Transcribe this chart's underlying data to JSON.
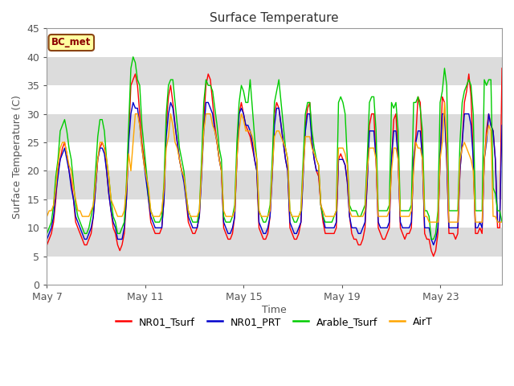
{
  "title": "Surface Temperature",
  "xlabel": "Time",
  "ylabel": "Surface Temperature (C)",
  "ylim": [
    0,
    45
  ],
  "yticks": [
    0,
    5,
    10,
    15,
    20,
    25,
    30,
    35,
    40,
    45
  ],
  "annotation": "BC_met",
  "annotation_bg": "#FFFFA0",
  "annotation_border": "#8B4513",
  "plot_bg": "#F0F0F0",
  "band_light": "#FFFFFF",
  "band_dark": "#DCDCDC",
  "legend_entries": [
    "NR01_Tsurf",
    "NR01_PRT",
    "Arable_Tsurf",
    "AirT"
  ],
  "line_colors": [
    "#FF0000",
    "#0000CC",
    "#00CC00",
    "#FFA500"
  ],
  "x_tick_labels": [
    "May 7",
    "May 11",
    "May 15",
    "May 19",
    "May 23"
  ],
  "x_tick_positions": [
    0,
    4,
    8,
    12,
    16
  ],
  "x_max": 18.5,
  "NR01_Tsurf": [
    7,
    8,
    9,
    11,
    15,
    20,
    22,
    24,
    25,
    23,
    20,
    18,
    15,
    11,
    10,
    9,
    8,
    7,
    7,
    8,
    9,
    12,
    17,
    22,
    24,
    25,
    24,
    20,
    16,
    13,
    10,
    9,
    7,
    6,
    7,
    9,
    15,
    26,
    35,
    36,
    37,
    35,
    30,
    25,
    22,
    19,
    15,
    11,
    10,
    9,
    9,
    9,
    10,
    15,
    28,
    33,
    35,
    32,
    28,
    25,
    22,
    20,
    19,
    15,
    11,
    10,
    9,
    9,
    10,
    12,
    20,
    29,
    35,
    37,
    36,
    32,
    28,
    25,
    22,
    20,
    10,
    9,
    8,
    8,
    9,
    12,
    22,
    30,
    32,
    30,
    28,
    27,
    26,
    24,
    22,
    20,
    10,
    9,
    8,
    8,
    9,
    12,
    20,
    30,
    32,
    31,
    28,
    25,
    22,
    20,
    10,
    9,
    8,
    8,
    9,
    11,
    20,
    28,
    31,
    32,
    25,
    22,
    20,
    19,
    14,
    11,
    9,
    9,
    9,
    9,
    9,
    10,
    22,
    23,
    22,
    21,
    18,
    12,
    9,
    8,
    8,
    7,
    7,
    8,
    10,
    18,
    28,
    30,
    30,
    22,
    10,
    9,
    8,
    8,
    9,
    10,
    22,
    29,
    30,
    22,
    10,
    9,
    8,
    9,
    9,
    10,
    22,
    26,
    33,
    32,
    22,
    9,
    8,
    8,
    6,
    5,
    6,
    9,
    22,
    33,
    32,
    22,
    9,
    9,
    9,
    8,
    9,
    20,
    25,
    32,
    34,
    37,
    33,
    22,
    9,
    9,
    10,
    9,
    22,
    27,
    30,
    28,
    27,
    22,
    10,
    10,
    38
  ],
  "NR01_PRT": [
    8,
    9,
    10,
    12,
    16,
    19,
    22,
    23,
    24,
    22,
    20,
    17,
    15,
    12,
    11,
    10,
    9,
    8,
    8,
    9,
    10,
    12,
    17,
    22,
    24,
    24,
    23,
    20,
    16,
    13,
    11,
    10,
    8,
    8,
    8,
    10,
    15,
    25,
    30,
    32,
    31,
    31,
    28,
    24,
    21,
    18,
    15,
    12,
    11,
    10,
    10,
    10,
    10,
    15,
    26,
    30,
    32,
    31,
    28,
    25,
    22,
    20,
    18,
    15,
    12,
    11,
    10,
    10,
    10,
    12,
    19,
    27,
    32,
    32,
    31,
    30,
    27,
    25,
    22,
    20,
    11,
    10,
    9,
    9,
    10,
    12,
    22,
    30,
    31,
    30,
    28,
    28,
    27,
    25,
    22,
    20,
    11,
    10,
    9,
    9,
    10,
    12,
    19,
    28,
    31,
    31,
    28,
    25,
    22,
    20,
    11,
    10,
    9,
    9,
    10,
    11,
    19,
    27,
    30,
    30,
    25,
    22,
    20,
    20,
    14,
    12,
    10,
    10,
    10,
    10,
    10,
    11,
    22,
    22,
    22,
    21,
    18,
    12,
    10,
    10,
    10,
    9,
    9,
    10,
    11,
    18,
    27,
    27,
    27,
    22,
    11,
    10,
    10,
    10,
    10,
    11,
    22,
    27,
    27,
    22,
    11,
    10,
    10,
    10,
    10,
    11,
    22,
    25,
    27,
    27,
    22,
    10,
    10,
    10,
    8,
    7,
    8,
    10,
    22,
    30,
    30,
    22,
    10,
    10,
    10,
    10,
    10,
    20,
    25,
    30,
    30,
    30,
    28,
    22,
    10,
    10,
    11,
    10,
    22,
    25,
    30,
    28,
    27,
    22,
    11,
    11,
    28
  ],
  "Arable_Tsurf": [
    9,
    10,
    11,
    14,
    19,
    22,
    27,
    28,
    29,
    27,
    24,
    22,
    18,
    14,
    12,
    11,
    10,
    9,
    9,
    10,
    12,
    14,
    20,
    26,
    29,
    29,
    27,
    22,
    19,
    15,
    12,
    11,
    9,
    9,
    10,
    11,
    18,
    28,
    38,
    40,
    39,
    36,
    35,
    28,
    24,
    20,
    16,
    13,
    12,
    11,
    11,
    11,
    12,
    18,
    30,
    35,
    36,
    36,
    32,
    28,
    24,
    22,
    20,
    16,
    13,
    12,
    11,
    11,
    11,
    13,
    22,
    32,
    36,
    35,
    35,
    34,
    31,
    28,
    24,
    22,
    12,
    11,
    11,
    11,
    12,
    14,
    25,
    32,
    35,
    34,
    32,
    32,
    36,
    31,
    26,
    22,
    13,
    12,
    11,
    11,
    12,
    14,
    22,
    32,
    34,
    36,
    32,
    28,
    24,
    22,
    13,
    12,
    11,
    11,
    12,
    13,
    22,
    30,
    32,
    32,
    27,
    24,
    22,
    21,
    14,
    12,
    11,
    11,
    11,
    11,
    12,
    13,
    32,
    33,
    32,
    30,
    22,
    14,
    13,
    13,
    13,
    12,
    12,
    13,
    14,
    22,
    32,
    33,
    33,
    27,
    13,
    13,
    13,
    13,
    13,
    14,
    32,
    31,
    32,
    27,
    13,
    13,
    13,
    13,
    13,
    14,
    32,
    32,
    33,
    31,
    27,
    13,
    13,
    12,
    8,
    8,
    9,
    13,
    32,
    34,
    38,
    35,
    13,
    13,
    13,
    13,
    13,
    25,
    32,
    34,
    35,
    36,
    35,
    30,
    13,
    13,
    13,
    13,
    36,
    35,
    36,
    36,
    17,
    16,
    13,
    13,
    11
  ],
  "AirT": [
    12,
    13,
    13,
    14,
    17,
    21,
    24,
    25,
    25,
    23,
    21,
    20,
    17,
    15,
    13,
    13,
    12,
    12,
    12,
    12,
    13,
    14,
    18,
    22,
    25,
    25,
    24,
    22,
    19,
    15,
    14,
    13,
    12,
    12,
    12,
    13,
    17,
    23,
    20,
    25,
    30,
    30,
    28,
    24,
    21,
    19,
    17,
    13,
    12,
    12,
    12,
    12,
    13,
    17,
    24,
    26,
    30,
    28,
    25,
    24,
    22,
    20,
    19,
    16,
    13,
    12,
    12,
    12,
    12,
    13,
    20,
    27,
    30,
    30,
    30,
    28,
    27,
    25,
    22,
    20,
    13,
    12,
    12,
    12,
    12,
    13,
    22,
    27,
    30,
    29,
    27,
    27,
    27,
    26,
    24,
    22,
    13,
    12,
    12,
    12,
    12,
    13,
    20,
    26,
    27,
    27,
    26,
    25,
    24,
    22,
    13,
    12,
    12,
    12,
    12,
    13,
    20,
    26,
    26,
    26,
    24,
    23,
    22,
    21,
    14,
    13,
    12,
    12,
    12,
    12,
    12,
    13,
    24,
    24,
    24,
    23,
    21,
    13,
    12,
    12,
    12,
    12,
    12,
    12,
    13,
    20,
    24,
    24,
    24,
    22,
    12,
    12,
    12,
    12,
    12,
    13,
    20,
    24,
    24,
    22,
    12,
    12,
    12,
    12,
    12,
    13,
    20,
    25,
    24,
    24,
    22,
    12,
    12,
    11,
    11,
    11,
    11,
    11,
    22,
    25,
    32,
    25,
    11,
    11,
    11,
    11,
    11,
    22,
    24,
    25,
    24,
    23,
    22,
    20,
    11,
    11,
    11,
    11,
    22,
    26,
    28,
    27,
    12,
    12,
    11,
    11,
    11
  ]
}
